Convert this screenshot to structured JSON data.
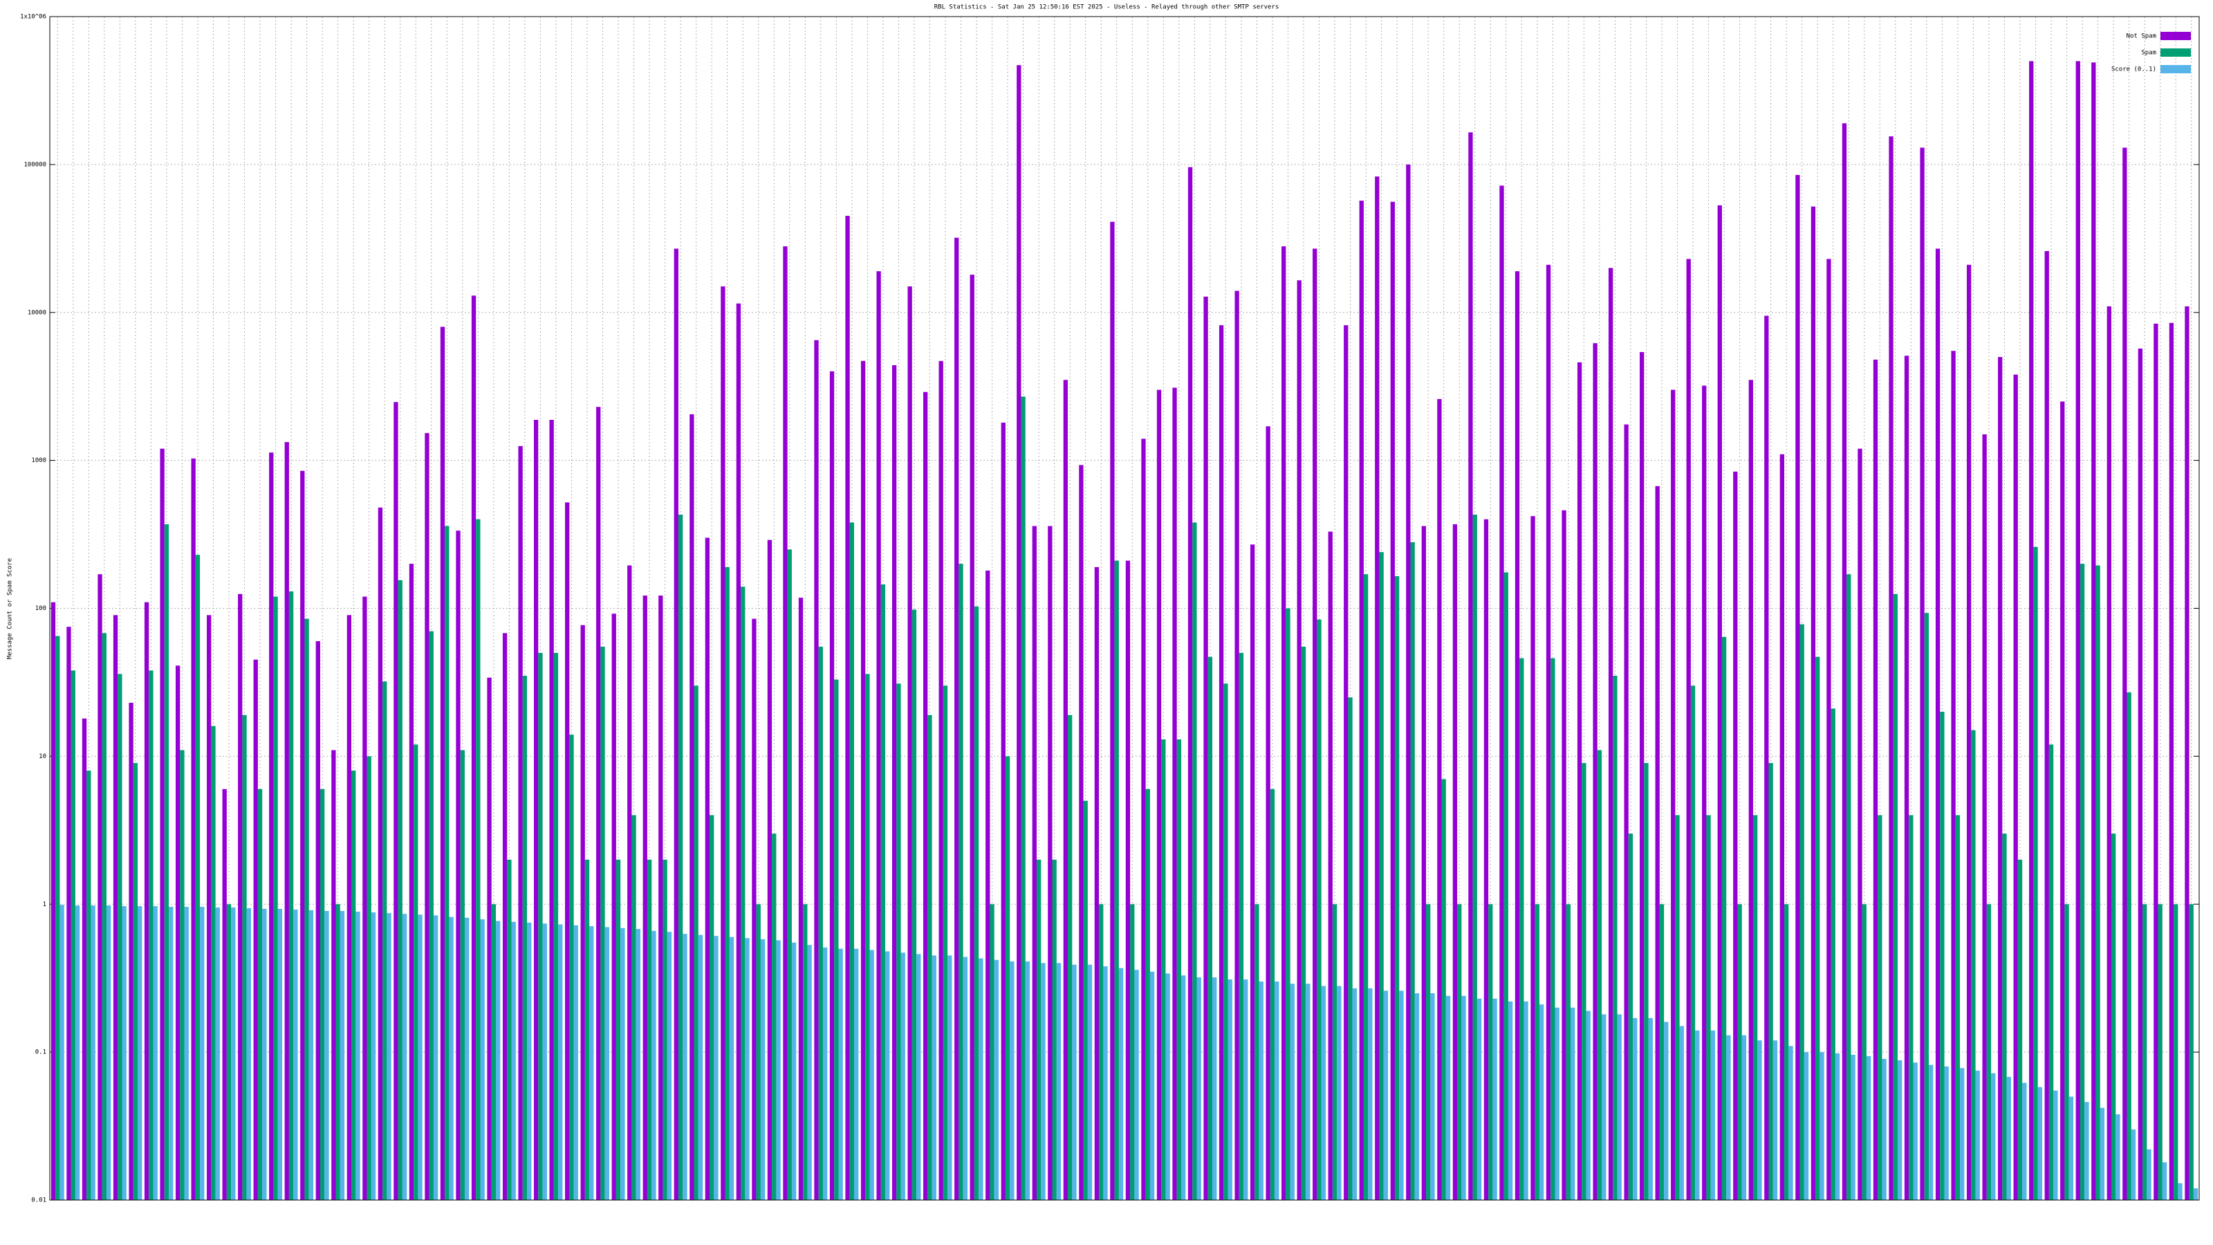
{
  "chart_data": {
    "type": "bar",
    "title": "RBL Statistics - Sat Jan 25 12:50:16 EST 2025 - Useless - Relayed through other SMTP servers",
    "y_label": "Message Count or Spam Score",
    "yscale": "log",
    "grid": true,
    "legend": "top-right",
    "ylim": [
      0.01,
      1000000
    ],
    "yticks": [
      0.01,
      0.1,
      1,
      10,
      100,
      1000,
      10000,
      100000,
      {
        "value": 1000000,
        "label": "1x10^06"
      }
    ],
    "categories": [
      null,
      null,
      null,
      null,
      null,
      null,
      null,
      null,
      null,
      null,
      null,
      null,
      null,
      null,
      null,
      null,
      null,
      null,
      null,
      null,
      null,
      null,
      null,
      null,
      null,
      null,
      null,
      null,
      null,
      null,
      null,
      null,
      null,
      null,
      null,
      null,
      null,
      null,
      null,
      null,
      null,
      null,
      null,
      null,
      null,
      null,
      null,
      null,
      null,
      null,
      null,
      null,
      null,
      null,
      null,
      null,
      null,
      null,
      null,
      null,
      null,
      null,
      null,
      null,
      null,
      null,
      null,
      null,
      null,
      null,
      null,
      null,
      null,
      null,
      null,
      null,
      null,
      null,
      null,
      null,
      null,
      null,
      null,
      null,
      null,
      null,
      null,
      null,
      null,
      null,
      null,
      null,
      null,
      null,
      null,
      null,
      null,
      null,
      null,
      null,
      null,
      null,
      null,
      null,
      null,
      null,
      null,
      null,
      null,
      null,
      null,
      null,
      null,
      null,
      null,
      null,
      null,
      null,
      null,
      null,
      null,
      null,
      null,
      null,
      null,
      null,
      null,
      null,
      null,
      null,
      null,
      null,
      null,
      null,
      null,
      null,
      null,
      null
    ],
    "series": [
      {
        "name": "Not Spam",
        "color": "#9400d3",
        "values": [
          110,
          75,
          18,
          170,
          90,
          23,
          110,
          1200,
          41,
          1030,
          90,
          6,
          125,
          45,
          1130,
          1330,
          850,
          60,
          11,
          90,
          120,
          480,
          2480,
          200,
          1530,
          8000,
          335,
          13000,
          34,
          68,
          1250,
          1880,
          1880,
          520,
          77,
          2300,
          92,
          195,
          122,
          122,
          27000,
          2050,
          300,
          15000,
          11500,
          85,
          290,
          28000,
          118,
          6500,
          4000,
          45000,
          4700,
          19000,
          4400,
          15000,
          2900,
          4700,
          32000,
          18000,
          180,
          1800,
          470000,
          360,
          360,
          3500,
          930,
          190,
          41000,
          210,
          1400,
          3000,
          3100,
          96000,
          12800,
          8200,
          14000,
          270,
          1700,
          28000,
          16500,
          27000,
          330,
          8200,
          57000,
          83000,
          56000,
          100000,
          360,
          2600,
          370,
          165000,
          400,
          72000,
          19000,
          420,
          21000,
          460,
          4600,
          6200,
          20000,
          1750,
          5400,
          670,
          3000,
          23000,
          3200,
          53000,
          840,
          3500,
          9500,
          1100,
          85000,
          52000,
          23000,
          190000,
          1200,
          4800,
          155000,
          5100,
          130000,
          27000,
          5500,
          21000,
          1500,
          5000,
          3800,
          500000,
          26000,
          2500,
          500000,
          490000,
          11000,
          130000,
          5700,
          8400,
          8500,
          11000
        ]
      },
      {
        "name": "Spam",
        "color": "#009e73",
        "values": [
          65,
          38,
          8,
          68,
          36,
          9,
          38,
          370,
          11,
          230,
          16,
          1,
          19,
          6,
          120,
          130,
          85,
          6,
          1,
          8,
          10,
          32,
          155,
          12,
          70,
          360,
          11,
          400,
          1,
          2,
          35,
          50,
          50,
          14,
          2,
          55,
          2,
          4,
          2,
          2,
          430,
          30,
          4,
          190,
          140,
          1,
          3,
          250,
          1,
          55,
          33,
          380,
          36,
          145,
          31,
          98,
          19,
          30,
          200,
          103,
          1,
          10,
          2700,
          2,
          2,
          19,
          5,
          1,
          210,
          1,
          6,
          13,
          13,
          380,
          47,
          31,
          50,
          1,
          6,
          100,
          55,
          84,
          1,
          25,
          170,
          240,
          165,
          280,
          1,
          7,
          1,
          430,
          1,
          175,
          46,
          1,
          46,
          1,
          9,
          11,
          35,
          3,
          9,
          1,
          4,
          30,
          4,
          64,
          1,
          4,
          9,
          1,
          78,
          47,
          21,
          170,
          1,
          4,
          125,
          4,
          93,
          20,
          4,
          15,
          1,
          3,
          2,
          260,
          12,
          1,
          200,
          195,
          3,
          27,
          1,
          1,
          1,
          1
        ]
      },
      {
        "name": "Score (0..1)",
        "color": "#56b4e9",
        "values": [
          0.99,
          0.98,
          0.98,
          0.98,
          0.97,
          0.97,
          0.97,
          0.96,
          0.96,
          0.96,
          0.95,
          0.95,
          0.94,
          0.93,
          0.93,
          0.92,
          0.91,
          0.9,
          0.9,
          0.89,
          0.88,
          0.87,
          0.86,
          0.85,
          0.84,
          0.82,
          0.81,
          0.79,
          0.77,
          0.76,
          0.75,
          0.74,
          0.73,
          0.72,
          0.71,
          0.7,
          0.69,
          0.68,
          0.66,
          0.65,
          0.63,
          0.62,
          0.61,
          0.6,
          0.59,
          0.58,
          0.57,
          0.55,
          0.53,
          0.51,
          0.5,
          0.5,
          0.49,
          0.48,
          0.47,
          0.46,
          0.45,
          0.45,
          0.44,
          0.43,
          0.42,
          0.41,
          0.41,
          0.4,
          0.4,
          0.39,
          0.39,
          0.38,
          0.37,
          0.36,
          0.35,
          0.34,
          0.33,
          0.32,
          0.32,
          0.31,
          0.31,
          0.3,
          0.3,
          0.29,
          0.29,
          0.28,
          0.28,
          0.27,
          0.27,
          0.26,
          0.26,
          0.25,
          0.25,
          0.24,
          0.24,
          0.23,
          0.23,
          0.22,
          0.22,
          0.21,
          0.2,
          0.2,
          0.19,
          0.18,
          0.18,
          0.17,
          0.17,
          0.16,
          0.15,
          0.14,
          0.14,
          0.13,
          0.13,
          0.12,
          0.12,
          0.11,
          0.1,
          0.1,
          0.098,
          0.096,
          0.094,
          0.09,
          0.088,
          0.085,
          0.082,
          0.08,
          0.078,
          0.075,
          0.072,
          0.068,
          0.062,
          0.058,
          0.055,
          0.05,
          0.046,
          0.042,
          0.038,
          0.03,
          0.022,
          0.018,
          0.013,
          0.012
        ]
      }
    ]
  }
}
